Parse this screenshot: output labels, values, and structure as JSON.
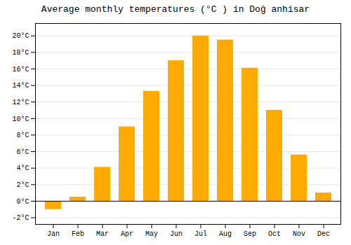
{
  "chart_data": {
    "type": "bar",
    "title": "Average monthly temperatures (°C ) in Doğ anhisar",
    "categories": [
      "Jan",
      "Feb",
      "Mar",
      "Apr",
      "May",
      "Jun",
      "Jul",
      "Aug",
      "Sep",
      "Oct",
      "Nov",
      "Dec"
    ],
    "values": [
      -1.0,
      0.5,
      4.1,
      9.0,
      13.3,
      17.0,
      20.0,
      19.5,
      16.1,
      11.0,
      5.6,
      1.0
    ],
    "color": "#FFAA00",
    "ylim": [
      -2.8,
      21.5
    ],
    "yticks": [
      {
        "value": -2,
        "label": "-2°C"
      },
      {
        "value": 0,
        "label": "0°C"
      },
      {
        "value": 2,
        "label": "2°C"
      },
      {
        "value": 4,
        "label": "4°C"
      },
      {
        "value": 6,
        "label": "6°C"
      },
      {
        "value": 8,
        "label": "8°C"
      },
      {
        "value": 10,
        "label": "10°C"
      },
      {
        "value": 12,
        "label": "12°C"
      },
      {
        "value": 14,
        "label": "14°C"
      },
      {
        "value": 16,
        "label": "16°C"
      },
      {
        "value": 18,
        "label": "18°C"
      },
      {
        "value": 20,
        "label": "20°C"
      }
    ],
    "grid": true
  }
}
